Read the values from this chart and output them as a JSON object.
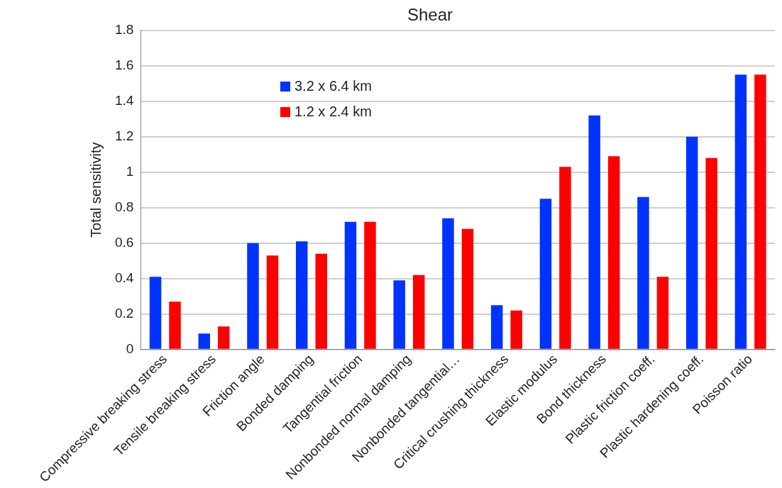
{
  "chart_data": {
    "type": "bar",
    "title": "Shear",
    "ylabel": "Total sensitivity",
    "categories": [
      "Compressive breaking stress",
      "Tensile breaking stress",
      "Friction angle",
      "Bonded damping",
      "Tangential friction",
      "Nonbonded normal damping",
      "Nonbonded tangential…",
      "Critical crushing thickness",
      "Elastic modulus",
      "Bond thickness",
      "Plastic friction coeff.",
      "Plastic hardening coeff.",
      "Poisson ratio"
    ],
    "series": [
      {
        "name": "3.2 x 6.4 km",
        "color": "#0033ff",
        "values": [
          0.41,
          0.09,
          0.6,
          0.61,
          0.72,
          0.39,
          0.74,
          0.25,
          0.85,
          1.32,
          0.86,
          1.2,
          1.55
        ]
      },
      {
        "name": "1.2 x 2.4 km",
        "color": "#ff0000",
        "values": [
          0.27,
          0.13,
          0.53,
          0.54,
          0.72,
          0.42,
          0.68,
          0.22,
          1.03,
          1.09,
          0.41,
          1.08,
          1.55
        ]
      }
    ],
    "ylim": [
      0,
      1.8
    ],
    "yticks": [
      0,
      0.2,
      0.4,
      0.6,
      0.8,
      1,
      1.2,
      1.4,
      1.6,
      1.8
    ],
    "grid": "y",
    "legend": "top left"
  }
}
